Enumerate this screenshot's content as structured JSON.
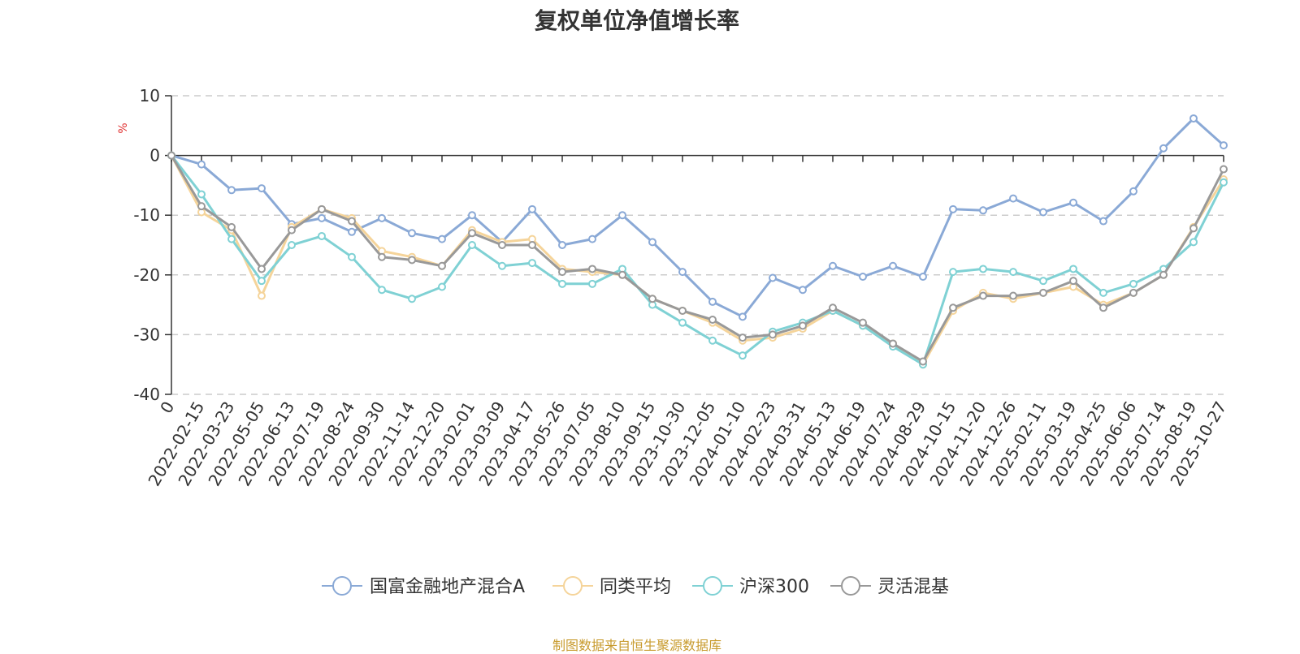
{
  "chart_data": {
    "type": "line",
    "title": "复权单位净值增长率",
    "ylabel": "%",
    "ylim": [
      -40,
      10
    ],
    "yticks": [
      "10",
      "0",
      "-10",
      "-20",
      "-30",
      "-40"
    ],
    "grid": true,
    "legend_position": "bottom",
    "x_tick_labels": [
      "0",
      "2022-02-15",
      "2022-03-23",
      "2022-05-05",
      "2022-06-13",
      "2022-07-19",
      "2022-08-24",
      "2022-09-30",
      "2022-11-14",
      "2022-12-20",
      "2023-02-01",
      "2023-03-09",
      "2023-04-17",
      "2023-05-26",
      "2023-07-05",
      "2023-08-10",
      "2023-09-15",
      "2023-10-30",
      "2023-12-05",
      "2024-01-10",
      "2024-02-23",
      "2024-03-31",
      "2024-05-13",
      "2024-06-19",
      "2024-07-24",
      "2024-08-29",
      "2024-10-15",
      "2024-11-20",
      "2024-12-26",
      "2025-02-11",
      "2025-03-19",
      "2025-04-25",
      "2025-06-06",
      "2025-07-14",
      "2025-08-19",
      "2025-10-27"
    ],
    "series": [
      {
        "name": "国富金融地产混合A",
        "color": "#8aa9d6",
        "values": [
          0,
          -1.5,
          -5.8,
          -5.5,
          -11.5,
          -10.5,
          -12.8,
          -10.5,
          -13,
          -14,
          -10,
          -14.5,
          -9,
          -15,
          -14,
          -10,
          -14.5,
          -19.5,
          -24.5,
          -27,
          -20.5,
          -22.5,
          -18.5,
          -20.3,
          -18.5,
          -20.3,
          -9,
          -9.2,
          -7.2,
          -9.5,
          -7.9,
          -11,
          -6,
          1.2,
          6.2,
          1.7
        ]
      },
      {
        "name": "同类平均",
        "color": "#f5d49a",
        "values": [
          0,
          -9.5,
          -12.5,
          -23.5,
          -12,
          -9,
          -10.5,
          -16,
          -17,
          -18.5,
          -12.5,
          -14.5,
          -14,
          -19,
          -19.5,
          -20,
          -24,
          -26,
          -28,
          -31,
          -30.5,
          -29,
          -26,
          -28.5,
          -31.5,
          -35,
          -26,
          -23,
          -24,
          -23,
          -22,
          -25,
          -23,
          -20,
          -12,
          -4
        ]
      },
      {
        "name": "沪深300",
        "color": "#7fd1d4",
        "values": [
          0,
          -6.5,
          -14,
          -21,
          -15,
          -13.5,
          -17,
          -22.5,
          -24,
          -22,
          -15,
          -18.5,
          -18,
          -21.5,
          -21.5,
          -19,
          -25,
          -28,
          -31,
          -33.5,
          -29.5,
          -28,
          -26,
          -28.5,
          -32,
          -35,
          -19.5,
          -19,
          -19.5,
          -21,
          -19,
          -23,
          -21.5,
          -19,
          -14.5,
          -4.5
        ]
      },
      {
        "name": "灵活混基",
        "color": "#999999",
        "values": [
          0,
          -8.5,
          -12,
          -19,
          -12.5,
          -9,
          -11,
          -17,
          -17.5,
          -18.5,
          -13,
          -15,
          -15,
          -19.5,
          -19,
          -20,
          -24,
          -26,
          -27.5,
          -30.5,
          -30,
          -28.5,
          -25.5,
          -28,
          -31.5,
          -34.5,
          -25.5,
          -23.5,
          -23.5,
          -23,
          -21,
          -25.5,
          -23,
          -20,
          -12.2,
          -2.3
        ]
      }
    ]
  },
  "footer": {
    "source": "制图数据来自恒生聚源数据库"
  }
}
